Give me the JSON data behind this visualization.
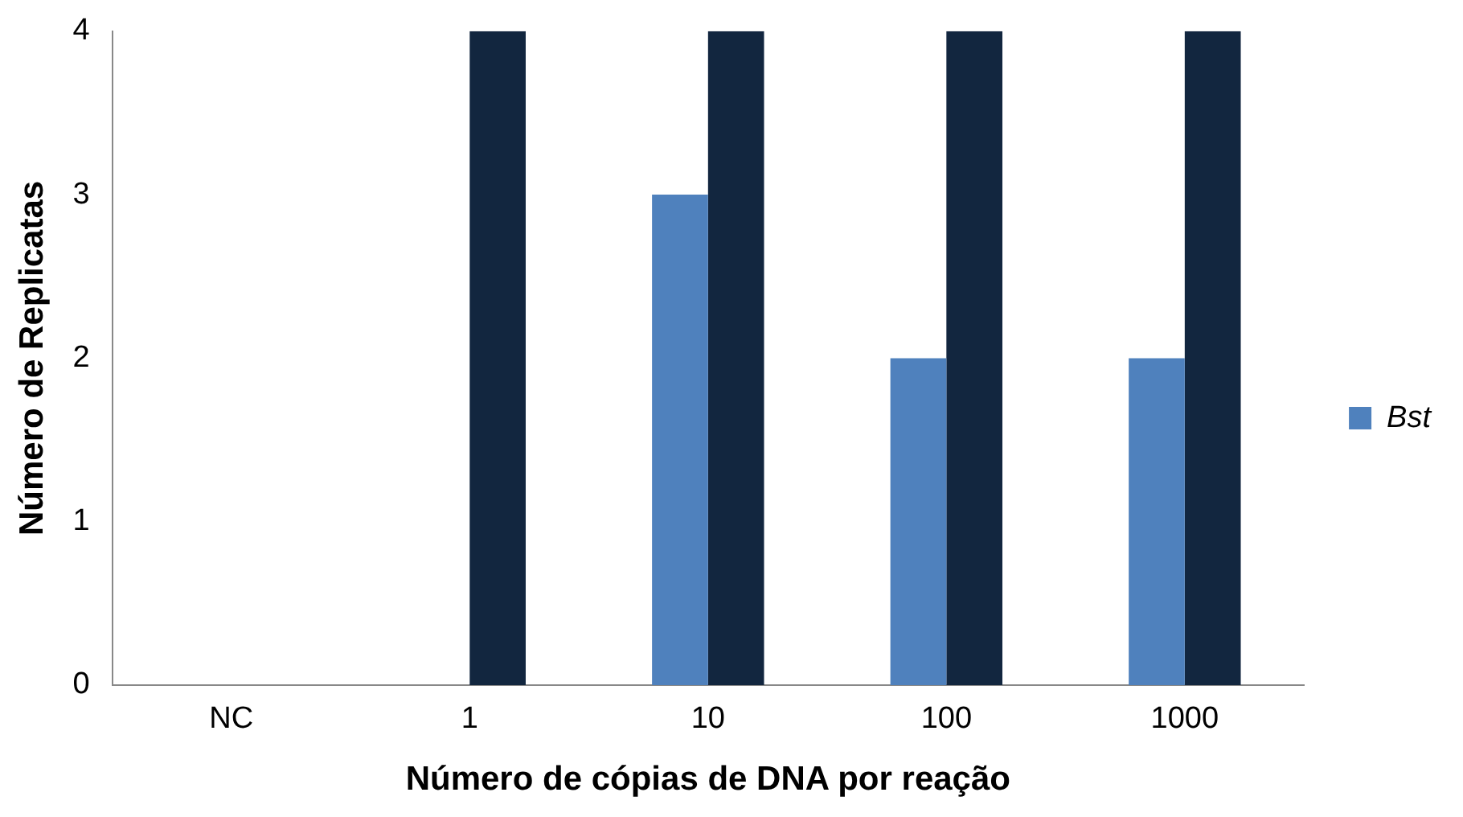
{
  "chart_data": {
    "type": "bar",
    "categories": [
      "NC",
      "1",
      "10",
      "100",
      "1000"
    ],
    "series": [
      {
        "name": "Bst",
        "color": "#4f81bd",
        "values": [
          0,
          0,
          3,
          2,
          2
        ]
      },
      {
        "color": "#12263f",
        "values": [
          0,
          4,
          4,
          4,
          4
        ]
      }
    ],
    "xlabel": "Número de cópias de DNA por reação",
    "ylabel": "Número de Replicatas",
    "ylim": [
      0,
      4
    ],
    "yticks": [
      0,
      1,
      2,
      3,
      4
    ],
    "grid": false,
    "legend": "right"
  }
}
